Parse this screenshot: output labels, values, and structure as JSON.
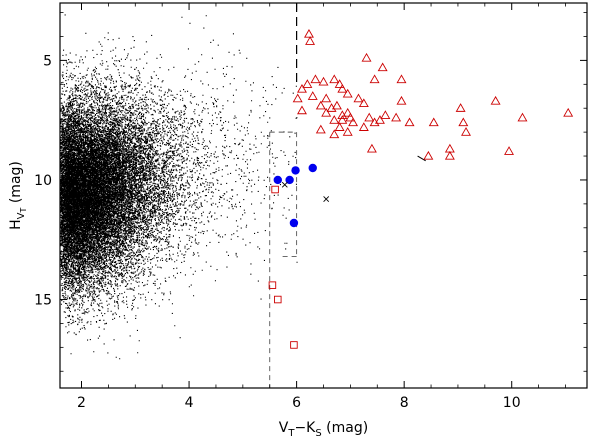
{
  "chart_data": {
    "type": "scatter",
    "title": "",
    "xlabel": "V_T − K_S (mag)",
    "ylabel": "H_{V_T} (mag)",
    "xlabel_parts": {
      "main": "V",
      "sub1": "T",
      "mid": "−K",
      "sub2": "S",
      "unit": " (mag)"
    },
    "ylabel_parts": {
      "main": "H",
      "sub": "V",
      "subsub": "T",
      "unit": " (mag)"
    },
    "xlim": [
      1.6,
      11.4
    ],
    "ylim": [
      18.7,
      2.6
    ],
    "y_inverted": true,
    "grid": false,
    "x_ticks": [
      2,
      4,
      6,
      8,
      10
    ],
    "y_ticks": [
      5,
      10,
      15
    ],
    "x_tick_labels": [
      "2",
      "4",
      "6",
      "8",
      "10"
    ],
    "y_tick_labels": [
      "5",
      "10",
      "15"
    ],
    "background_field": {
      "description_kind": "dense black dots",
      "color": "#000000",
      "core_x": 1.75,
      "core_y": 10.6,
      "x_range": [
        1.6,
        6.0
      ],
      "y_range": [
        3.0,
        17.5
      ]
    },
    "series": [
      {
        "marker": "triangle",
        "color": "#cc0000",
        "points": [
          [
            6.23,
            3.9
          ],
          [
            6.25,
            4.2
          ],
          [
            7.3,
            4.9
          ],
          [
            7.6,
            5.3
          ],
          [
            6.35,
            5.8
          ],
          [
            6.2,
            6.0
          ],
          [
            6.5,
            5.9
          ],
          [
            6.7,
            5.8
          ],
          [
            6.8,
            6.0
          ],
          [
            6.1,
            6.2
          ],
          [
            7.45,
            5.8
          ],
          [
            7.95,
            5.8
          ],
          [
            6.02,
            6.6
          ],
          [
            6.3,
            6.5
          ],
          [
            6.45,
            6.9
          ],
          [
            6.85,
            6.2
          ],
          [
            6.95,
            6.4
          ],
          [
            7.15,
            6.6
          ],
          [
            7.25,
            6.8
          ],
          [
            6.75,
            6.9
          ],
          [
            6.85,
            7.3
          ],
          [
            6.7,
            7.5
          ],
          [
            6.55,
            7.2
          ],
          [
            6.95,
            7.2
          ],
          [
            7.05,
            7.6
          ],
          [
            7.35,
            7.4
          ],
          [
            7.55,
            7.5
          ],
          [
            7.45,
            7.6
          ],
          [
            7.65,
            7.3
          ],
          [
            7.85,
            7.4
          ],
          [
            7.95,
            6.7
          ],
          [
            8.1,
            7.6
          ],
          [
            8.55,
            7.6
          ],
          [
            6.45,
            7.9
          ],
          [
            6.7,
            8.1
          ],
          [
            6.95,
            8.0
          ],
          [
            7.25,
            7.8
          ],
          [
            6.85,
            7.5
          ],
          [
            9.05,
            7.0
          ],
          [
            9.7,
            6.7
          ],
          [
            9.1,
            7.6
          ],
          [
            9.15,
            8.0
          ],
          [
            10.2,
            7.4
          ],
          [
            11.05,
            7.2
          ],
          [
            6.65,
            7.0
          ],
          [
            6.55,
            6.6
          ],
          [
            7.4,
            8.7
          ],
          [
            8.85,
            8.7
          ],
          [
            8.85,
            9.0
          ],
          [
            9.95,
            8.8
          ],
          [
            8.45,
            9.0
          ],
          [
            6.8,
            7.8
          ],
          [
            7.0,
            7.4
          ],
          [
            6.1,
            7.1
          ]
        ]
      },
      {
        "marker": "filled-circle",
        "color": "#0000ee",
        "points": [
          [
            5.65,
            10.0
          ],
          [
            5.87,
            10.0
          ],
          [
            5.98,
            9.6
          ],
          [
            6.3,
            9.5
          ],
          [
            5.95,
            11.8
          ]
        ]
      },
      {
        "marker": "open-square",
        "color": "#cc0000",
        "points": [
          [
            5.6,
            10.4
          ],
          [
            5.55,
            14.4
          ],
          [
            5.65,
            15.0
          ],
          [
            5.95,
            16.9
          ]
        ]
      },
      {
        "marker": "cross",
        "color": "#000000",
        "points": [
          [
            5.78,
            10.2
          ],
          [
            6.55,
            10.8
          ]
        ]
      }
    ],
    "dash_segments": [
      {
        "color": "#000000",
        "points": [
          [
            8.25,
            9.0
          ],
          [
            8.4,
            9.2
          ]
        ]
      }
    ],
    "vertical_dashed_line": {
      "x": 6.0,
      "y_from": 2.6,
      "y_to": 6.0,
      "color": "#000000",
      "dash": "long"
    },
    "selection_box": {
      "x_from": 5.5,
      "x_to": 6.0,
      "y_from": 8.0,
      "y_to": 18.7,
      "y_mid": 13.2,
      "color": "#555555",
      "dash": "short"
    }
  }
}
